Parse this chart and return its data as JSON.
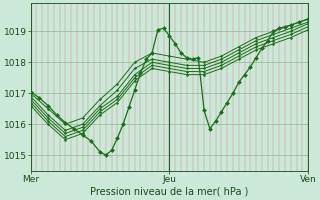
{
  "background_color": "#cce8d8",
  "plot_bg_color": "#cce8d8",
  "line_color": "#1a6e1a",
  "ylabel": "Pression niveau de la mer( hPa )",
  "xlim": [
    0,
    96
  ],
  "ylim": [
    1014.5,
    1019.9
  ],
  "yticks": [
    1015,
    1016,
    1017,
    1018,
    1019
  ],
  "xtick_positions": [
    0,
    48,
    96
  ],
  "xtick_labels": [
    "Mer",
    "Jeu",
    "Ven"
  ],
  "n_vgrid": 48,
  "series": [
    {
      "x": [
        0,
        6,
        12,
        18,
        24,
        30,
        36,
        42,
        48,
        54,
        60,
        66,
        72,
        78,
        84,
        90,
        96
      ],
      "y": [
        1017.0,
        1016.5,
        1016.0,
        1016.2,
        1016.8,
        1017.3,
        1018.0,
        1018.3,
        1018.2,
        1018.1,
        1018.0,
        1018.2,
        1018.5,
        1018.8,
        1019.0,
        1019.2,
        1019.4
      ]
    },
    {
      "x": [
        0,
        6,
        12,
        18,
        24,
        30,
        36,
        42,
        48,
        54,
        60,
        66,
        72,
        78,
        84,
        90,
        96
      ],
      "y": [
        1016.9,
        1016.3,
        1015.8,
        1016.0,
        1016.6,
        1017.1,
        1017.8,
        1018.1,
        1018.0,
        1017.9,
        1017.9,
        1018.1,
        1018.4,
        1018.7,
        1018.9,
        1019.1,
        1019.3
      ]
    },
    {
      "x": [
        0,
        6,
        12,
        18,
        24,
        30,
        36,
        42,
        48,
        54,
        60,
        66,
        72,
        78,
        84,
        90,
        96
      ],
      "y": [
        1016.8,
        1016.2,
        1015.7,
        1015.9,
        1016.5,
        1016.9,
        1017.6,
        1018.0,
        1017.9,
        1017.8,
        1017.8,
        1018.0,
        1018.3,
        1018.6,
        1018.8,
        1019.0,
        1019.25
      ]
    },
    {
      "x": [
        0,
        6,
        12,
        18,
        24,
        30,
        36,
        42,
        48,
        54,
        60,
        66,
        72,
        78,
        84,
        90,
        96
      ],
      "y": [
        1016.7,
        1016.1,
        1015.6,
        1015.8,
        1016.4,
        1016.8,
        1017.5,
        1017.9,
        1017.8,
        1017.7,
        1017.7,
        1017.9,
        1018.2,
        1018.5,
        1018.7,
        1018.9,
        1019.15
      ]
    },
    {
      "x": [
        0,
        6,
        12,
        18,
        24,
        30,
        36,
        42,
        48,
        54,
        60,
        66,
        72,
        78,
        84,
        90,
        96
      ],
      "y": [
        1016.6,
        1016.0,
        1015.5,
        1015.7,
        1016.3,
        1016.7,
        1017.4,
        1017.8,
        1017.7,
        1017.6,
        1017.6,
        1017.8,
        1018.1,
        1018.4,
        1018.6,
        1018.8,
        1019.05
      ]
    }
  ],
  "main_line": {
    "x": [
      0,
      3,
      6,
      9,
      12,
      15,
      18,
      21,
      24,
      26,
      28,
      30,
      32,
      34,
      36,
      38,
      40,
      42,
      44,
      46,
      48,
      50,
      52,
      54,
      56,
      58,
      60,
      62,
      64,
      66,
      68,
      70,
      72,
      74,
      76,
      78,
      80,
      82,
      84,
      86,
      88,
      90,
      93,
      96
    ],
    "y": [
      1017.05,
      1016.85,
      1016.6,
      1016.3,
      1016.05,
      1015.85,
      1015.65,
      1015.45,
      1015.1,
      1015.0,
      1015.15,
      1015.55,
      1016.0,
      1016.55,
      1017.1,
      1017.65,
      1018.1,
      1018.3,
      1019.05,
      1019.1,
      1018.85,
      1018.6,
      1018.3,
      1018.15,
      1018.1,
      1018.15,
      1016.45,
      1015.85,
      1016.1,
      1016.4,
      1016.7,
      1017.0,
      1017.35,
      1017.6,
      1017.85,
      1018.15,
      1018.45,
      1018.7,
      1019.0,
      1019.1,
      1019.15,
      1019.2,
      1019.3,
      1019.4
    ]
  }
}
